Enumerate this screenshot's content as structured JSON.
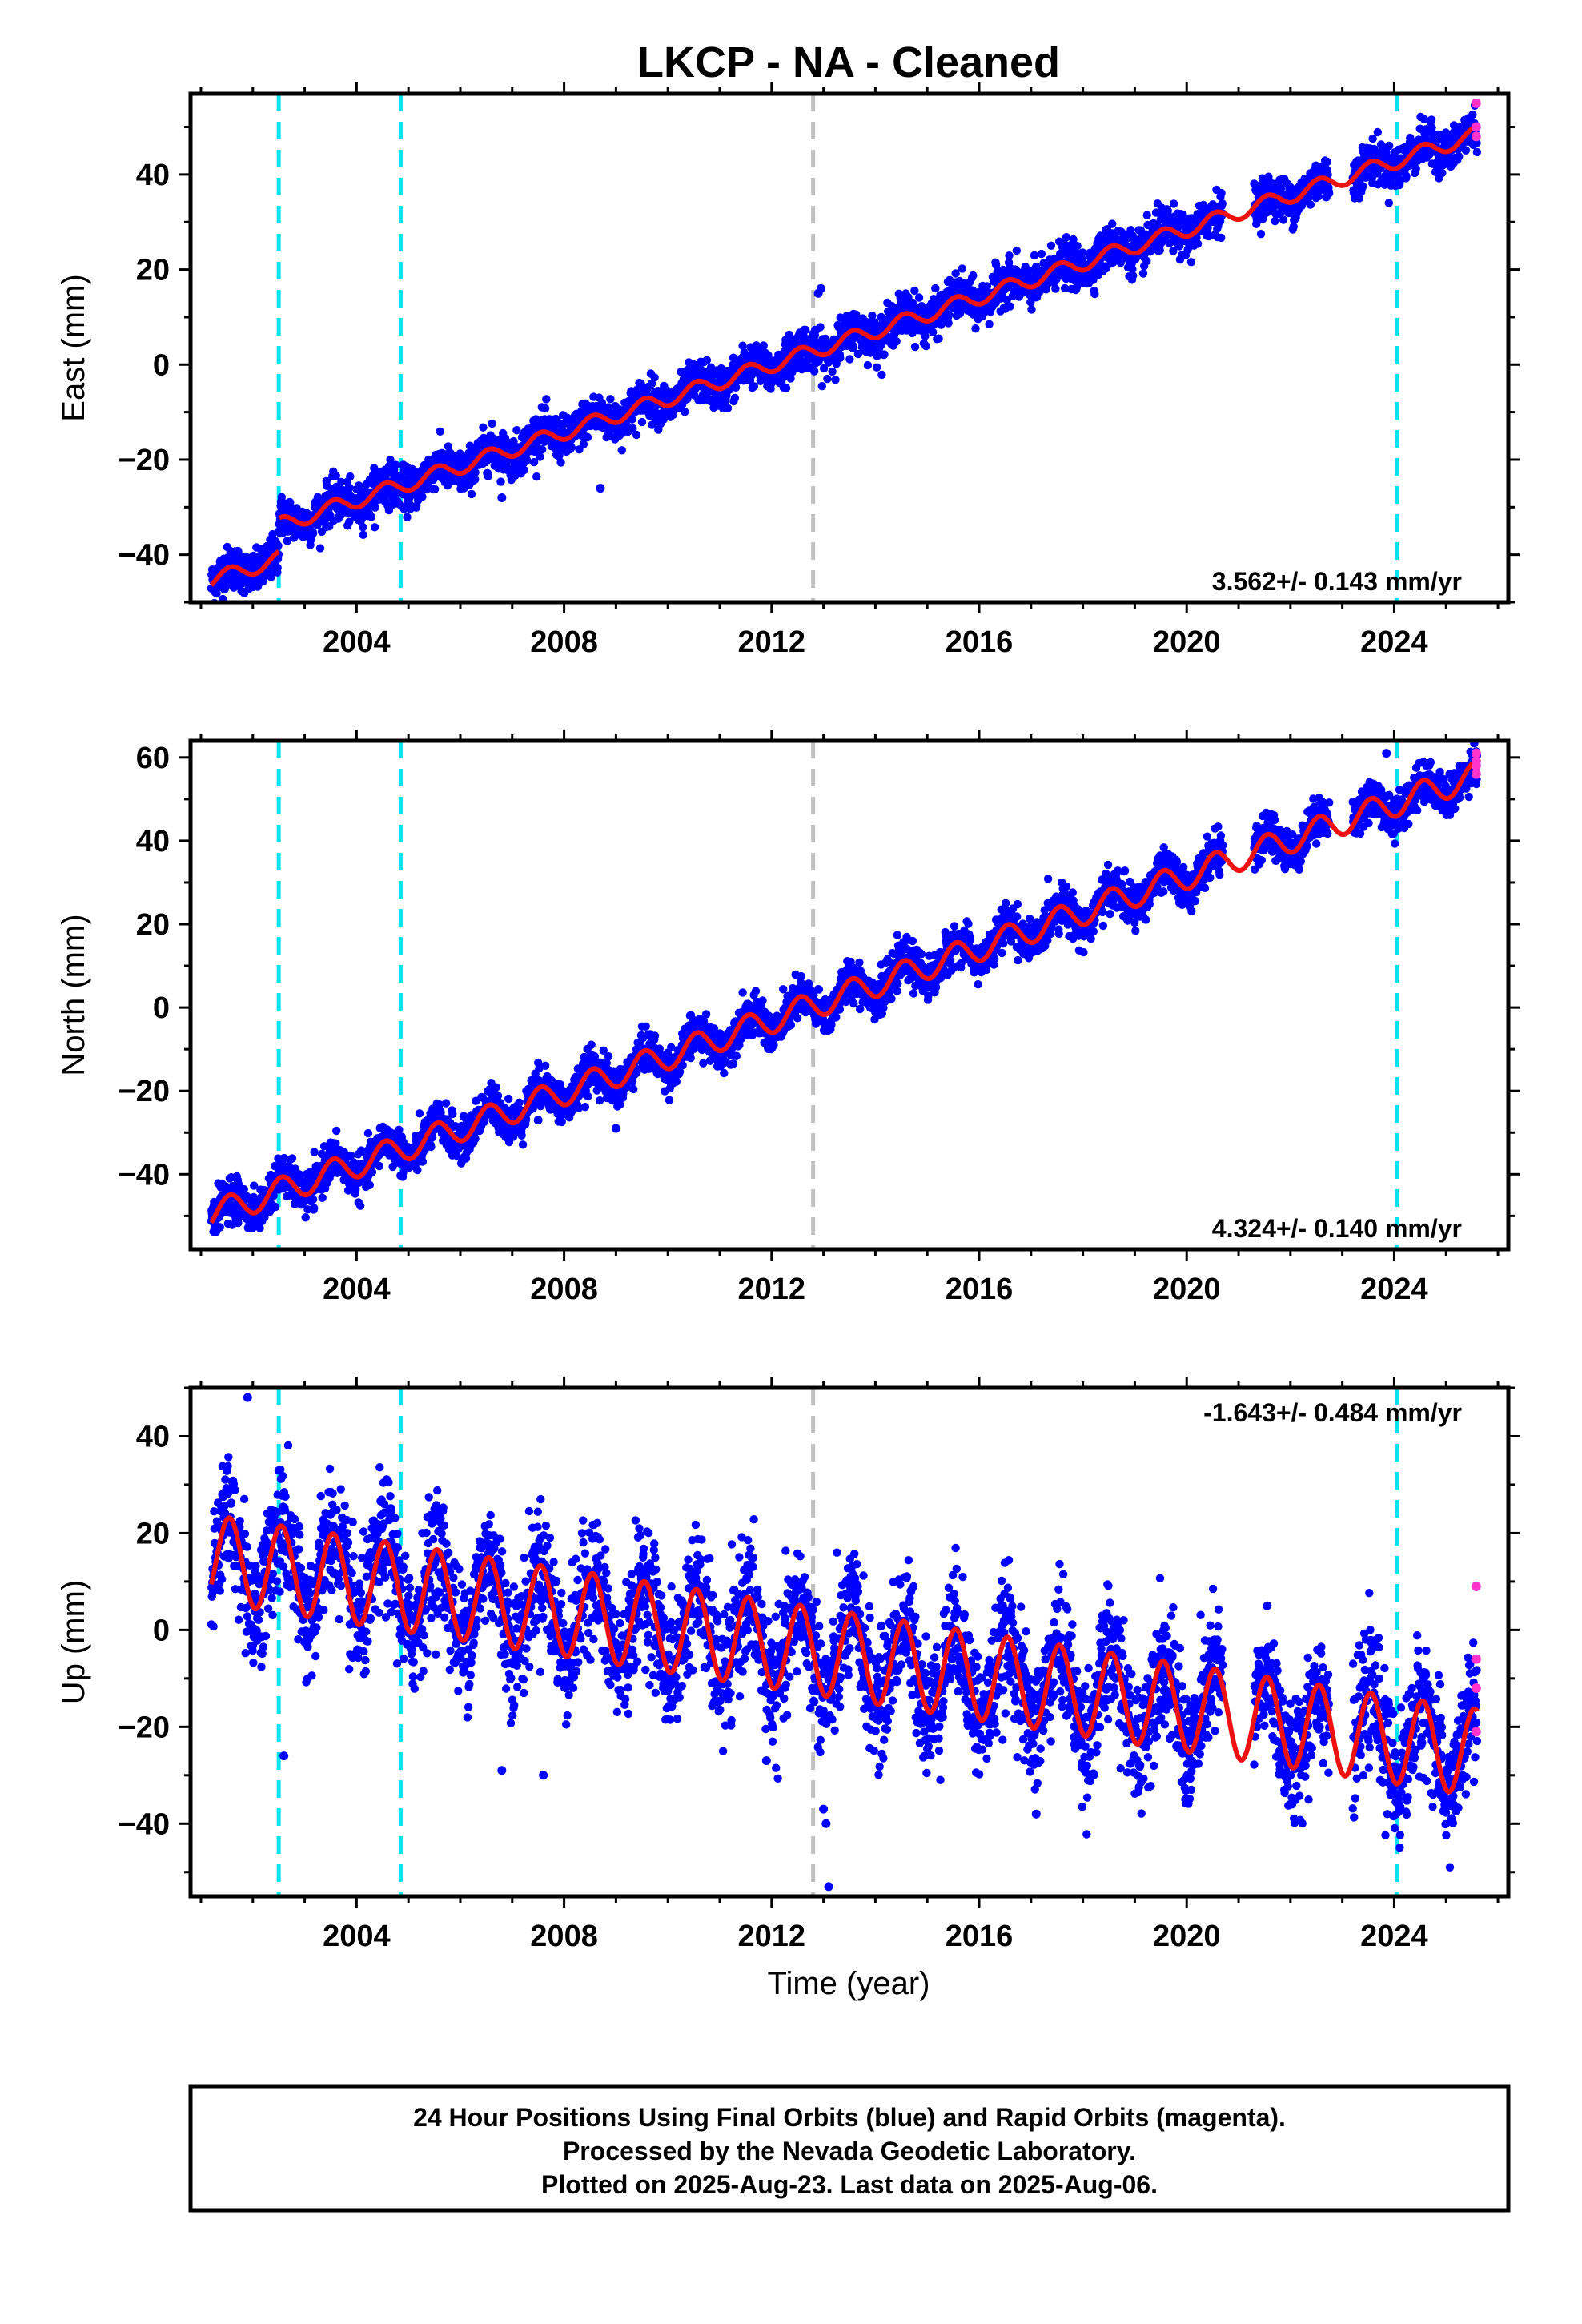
{
  "title": "LKCP  - NA - Cleaned",
  "xlabel": "Time (year)",
  "footer": {
    "line1": "24 Hour Positions Using Final Orbits (blue) and Rapid Orbits (magenta).",
    "line2": "Processed by the Nevada Geodetic Laboratory.",
    "line3": "Plotted on 2025-Aug-23. Last data on 2025-Aug-06."
  },
  "colors": {
    "final_orbits": "#0000ff",
    "rapid_orbits": "#ff33cc",
    "model_fit": "#ee1111",
    "equipment_change": "#00e5ee",
    "earthquake_event": "#c0c0c0"
  },
  "chart_data": [
    {
      "type": "scatter",
      "ylabel": "East (mm)",
      "xlim": [
        2000.8,
        2026.2
      ],
      "ylim": [
        -50,
        57
      ],
      "x_ticks": [
        2004,
        2008,
        2012,
        2016,
        2020,
        2024
      ],
      "x_tick_labels": [
        "2004",
        "2008",
        "2012",
        "2016",
        "2020",
        "2024"
      ],
      "y_ticks": [
        -40,
        -20,
        0,
        20,
        40
      ],
      "y_tick_labels": [
        "−40",
        "−20",
        "0",
        "20",
        "40"
      ],
      "rate_label": "3.562+/- 0.143 mm/yr",
      "data_start": 2001.2,
      "data_end": 2025.6,
      "gaps": [
        [
          2020.7,
          2021.3
        ],
        [
          2022.75,
          2023.2
        ]
      ],
      "model": {
        "rate": 3.562,
        "ref_year": 2012,
        "ref_value": 0,
        "annual_amp": 1.6,
        "offsets": [
          [
            2002.5,
            7
          ]
        ]
      },
      "scatter": 2.2,
      "rapid_orbits": [
        [
          2025.58,
          55
        ],
        [
          2025.58,
          48
        ],
        [
          2025.58,
          50
        ]
      ],
      "outliers": [
        [
          2012.9,
          15
        ],
        [
          2012.95,
          16
        ],
        [
          2008.7,
          -26
        ],
        [
          2006.8,
          -28
        ]
      ],
      "vlines": [
        {
          "x": 2002.5,
          "kind": "equipment"
        },
        {
          "x": 2004.85,
          "kind": "equipment"
        },
        {
          "x": 2012.8,
          "kind": "event"
        },
        {
          "x": 2024.05,
          "kind": "equipment"
        }
      ]
    },
    {
      "type": "scatter",
      "ylabel": "North (mm)",
      "xlim": [
        2000.8,
        2026.2
      ],
      "ylim": [
        -58,
        64
      ],
      "x_ticks": [
        2004,
        2008,
        2012,
        2016,
        2020,
        2024
      ],
      "x_tick_labels": [
        "2004",
        "2008",
        "2012",
        "2016",
        "2020",
        "2024"
      ],
      "y_ticks": [
        -40,
        -20,
        0,
        20,
        40,
        60
      ],
      "y_tick_labels": [
        "−40",
        "−20",
        "0",
        "20",
        "40",
        "60"
      ],
      "rate_label": "4.324+/- 0.140 mm/yr",
      "data_start": 2001.2,
      "data_end": 2025.6,
      "gaps": [
        [
          2020.7,
          2021.3
        ],
        [
          2022.75,
          2023.2
        ]
      ],
      "model": {
        "rate": 4.324,
        "ref_year": 2012,
        "ref_value": -3,
        "annual_amp": 3.2,
        "offsets": []
      },
      "scatter": 2.4,
      "rapid_orbits": [
        [
          2025.58,
          61
        ],
        [
          2025.58,
          58
        ],
        [
          2025.58,
          56
        ],
        [
          2025.58,
          59
        ]
      ],
      "outliers": [
        [
          2023.85,
          61
        ],
        [
          2009.0,
          -29
        ],
        [
          2007.5,
          -27
        ]
      ],
      "vlines": [
        {
          "x": 2002.5,
          "kind": "equipment"
        },
        {
          "x": 2004.85,
          "kind": "equipment"
        },
        {
          "x": 2012.8,
          "kind": "event"
        },
        {
          "x": 2024.05,
          "kind": "equipment"
        }
      ]
    },
    {
      "type": "scatter",
      "ylabel": "Up (mm)",
      "xlim": [
        2000.8,
        2026.2
      ],
      "ylim": [
        -55,
        50
      ],
      "x_ticks": [
        2004,
        2008,
        2012,
        2016,
        2020,
        2024
      ],
      "x_tick_labels": [
        "2004",
        "2008",
        "2012",
        "2016",
        "2020",
        "2024"
      ],
      "y_ticks": [
        -40,
        -20,
        0,
        20,
        40
      ],
      "y_tick_labels": [
        "−40",
        "−20",
        "0",
        "20",
        "40"
      ],
      "rate_label": "-1.643+/- 0.484 mm/yr",
      "data_start": 2001.2,
      "data_end": 2025.6,
      "gaps": [
        [
          2020.7,
          2021.3
        ],
        [
          2022.75,
          2023.2
        ]
      ],
      "model": {
        "rate": -1.643,
        "ref_year": 2012,
        "ref_value": -3,
        "annual_amp": 9,
        "offsets": []
      },
      "scatter": 6.5,
      "rapid_orbits": [
        [
          2025.58,
          9
        ],
        [
          2025.58,
          -6
        ],
        [
          2025.58,
          -12
        ],
        [
          2025.58,
          -21
        ]
      ],
      "outliers": [
        [
          2001.9,
          48
        ],
        [
          2002.6,
          -26
        ],
        [
          2006.8,
          -29
        ],
        [
          2007.6,
          -30
        ],
        [
          2013.0,
          -37
        ],
        [
          2013.05,
          -40
        ],
        [
          2013.1,
          -53
        ],
        [
          2017.1,
          -38
        ],
        [
          2022.0,
          -36
        ],
        [
          2011.9,
          -27
        ]
      ],
      "vlines": [
        {
          "x": 2002.5,
          "kind": "equipment"
        },
        {
          "x": 2004.85,
          "kind": "equipment"
        },
        {
          "x": 2012.8,
          "kind": "event"
        },
        {
          "x": 2024.05,
          "kind": "equipment"
        }
      ]
    }
  ]
}
